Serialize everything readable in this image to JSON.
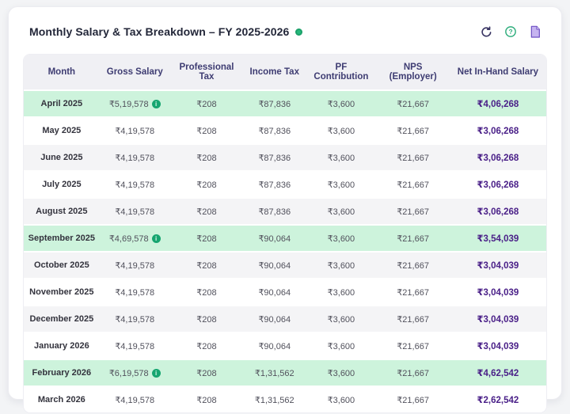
{
  "header": {
    "title": "Monthly Salary & Tax Breakdown – FY 2025-2026",
    "status_dot": "live-indicator",
    "icons": [
      {
        "name": "refresh-icon",
        "color": "#393563"
      },
      {
        "name": "help-icon",
        "color": "#2fae7d"
      },
      {
        "name": "document-icon",
        "color": "#6d4fc4"
      }
    ]
  },
  "table": {
    "columns": [
      "Month",
      "Gross Salary",
      "Professional Tax",
      "Income Tax",
      "PF Contribution",
      "NPS (Employer)",
      "Net In-Hand Salary"
    ],
    "rows": [
      {
        "month": "April 2025",
        "gross": "₹5,19,578",
        "gross_info": true,
        "professional_tax": "₹208",
        "income_tax": "₹87,836",
        "pf": "₹3,600",
        "nps": "₹21,667",
        "net": "₹4,06,268",
        "highlighted": true
      },
      {
        "month": "May 2025",
        "gross": "₹4,19,578",
        "gross_info": false,
        "professional_tax": "₹208",
        "income_tax": "₹87,836",
        "pf": "₹3,600",
        "nps": "₹21,667",
        "net": "₹3,06,268",
        "highlighted": false
      },
      {
        "month": "June 2025",
        "gross": "₹4,19,578",
        "gross_info": false,
        "professional_tax": "₹208",
        "income_tax": "₹87,836",
        "pf": "₹3,600",
        "nps": "₹21,667",
        "net": "₹3,06,268",
        "highlighted": false
      },
      {
        "month": "July 2025",
        "gross": "₹4,19,578",
        "gross_info": false,
        "professional_tax": "₹208",
        "income_tax": "₹87,836",
        "pf": "₹3,600",
        "nps": "₹21,667",
        "net": "₹3,06,268",
        "highlighted": false
      },
      {
        "month": "August 2025",
        "gross": "₹4,19,578",
        "gross_info": false,
        "professional_tax": "₹208",
        "income_tax": "₹87,836",
        "pf": "₹3,600",
        "nps": "₹21,667",
        "net": "₹3,06,268",
        "highlighted": false
      },
      {
        "month": "September 2025",
        "gross": "₹4,69,578",
        "gross_info": true,
        "professional_tax": "₹208",
        "income_tax": "₹90,064",
        "pf": "₹3,600",
        "nps": "₹21,667",
        "net": "₹3,54,039",
        "highlighted": true
      },
      {
        "month": "October 2025",
        "gross": "₹4,19,578",
        "gross_info": false,
        "professional_tax": "₹208",
        "income_tax": "₹90,064",
        "pf": "₹3,600",
        "nps": "₹21,667",
        "net": "₹3,04,039",
        "highlighted": false
      },
      {
        "month": "November 2025",
        "gross": "₹4,19,578",
        "gross_info": false,
        "professional_tax": "₹208",
        "income_tax": "₹90,064",
        "pf": "₹3,600",
        "nps": "₹21,667",
        "net": "₹3,04,039",
        "highlighted": false
      },
      {
        "month": "December 2025",
        "gross": "₹4,19,578",
        "gross_info": false,
        "professional_tax": "₹208",
        "income_tax": "₹90,064",
        "pf": "₹3,600",
        "nps": "₹21,667",
        "net": "₹3,04,039",
        "highlighted": false
      },
      {
        "month": "January 2026",
        "gross": "₹4,19,578",
        "gross_info": false,
        "professional_tax": "₹208",
        "income_tax": "₹90,064",
        "pf": "₹3,600",
        "nps": "₹21,667",
        "net": "₹3,04,039",
        "highlighted": false
      },
      {
        "month": "February 2026",
        "gross": "₹6,19,578",
        "gross_info": true,
        "professional_tax": "₹208",
        "income_tax": "₹1,31,562",
        "pf": "₹3,600",
        "nps": "₹21,667",
        "net": "₹4,62,542",
        "highlighted": true
      },
      {
        "month": "March 2026",
        "gross": "₹4,19,578",
        "gross_info": false,
        "professional_tax": "₹208",
        "income_tax": "₹1,31,562",
        "pf": "₹3,600",
        "nps": "₹21,667",
        "net": "₹2,62,542",
        "highlighted": false
      }
    ],
    "info_icon_glyph": "i"
  },
  "colors": {
    "page_bg": "#f3f4f6",
    "card_bg": "#ffffff",
    "title_text": "#232739",
    "header_bg": "#f0f0f4",
    "header_text": "#3e3c72",
    "row_stripe": "#f4f4f6",
    "row_highlight": "#cdf3dc",
    "month_text": "#33333d",
    "value_text": "#51515c",
    "net_text": "#4a2088",
    "info_green": "#16a570",
    "status_green": "#26b97c"
  }
}
